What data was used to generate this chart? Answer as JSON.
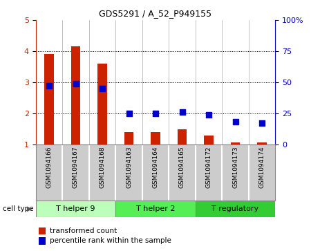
{
  "title": "GDS5291 / A_52_P949155",
  "samples": [
    "GSM1094166",
    "GSM1094167",
    "GSM1094168",
    "GSM1094163",
    "GSM1094164",
    "GSM1094165",
    "GSM1094172",
    "GSM1094173",
    "GSM1094174"
  ],
  "transformed_counts": [
    3.9,
    4.15,
    3.6,
    1.4,
    1.4,
    1.48,
    1.28,
    1.05,
    1.05
  ],
  "percentile_ranks_pct": [
    47,
    49,
    45,
    25,
    25,
    26,
    24,
    18,
    17
  ],
  "ylim_left": [
    1,
    5
  ],
  "ylim_right": [
    0,
    100
  ],
  "yticks_left": [
    1,
    2,
    3,
    4,
    5
  ],
  "yticks_right": [
    0,
    25,
    50,
    75,
    100
  ],
  "ytick_labels_right": [
    "0",
    "25",
    "50",
    "75",
    "100%"
  ],
  "bar_color": "#cc2200",
  "dot_color": "#0000cc",
  "groups": [
    {
      "label": "T helper 9",
      "indices": [
        0,
        1,
        2
      ],
      "color": "#bbffbb"
    },
    {
      "label": "T helper 2",
      "indices": [
        3,
        4,
        5
      ],
      "color": "#55ee55"
    },
    {
      "label": "T regulatory",
      "indices": [
        6,
        7,
        8
      ],
      "color": "#33cc33"
    }
  ],
  "cell_type_label": "cell type",
  "legend_bar_label": "transformed count",
  "legend_dot_label": "percentile rank within the sample",
  "bar_bottom": 1.0,
  "bar_width": 0.35,
  "dot_size": 30,
  "tick_area_color": "#cccccc"
}
